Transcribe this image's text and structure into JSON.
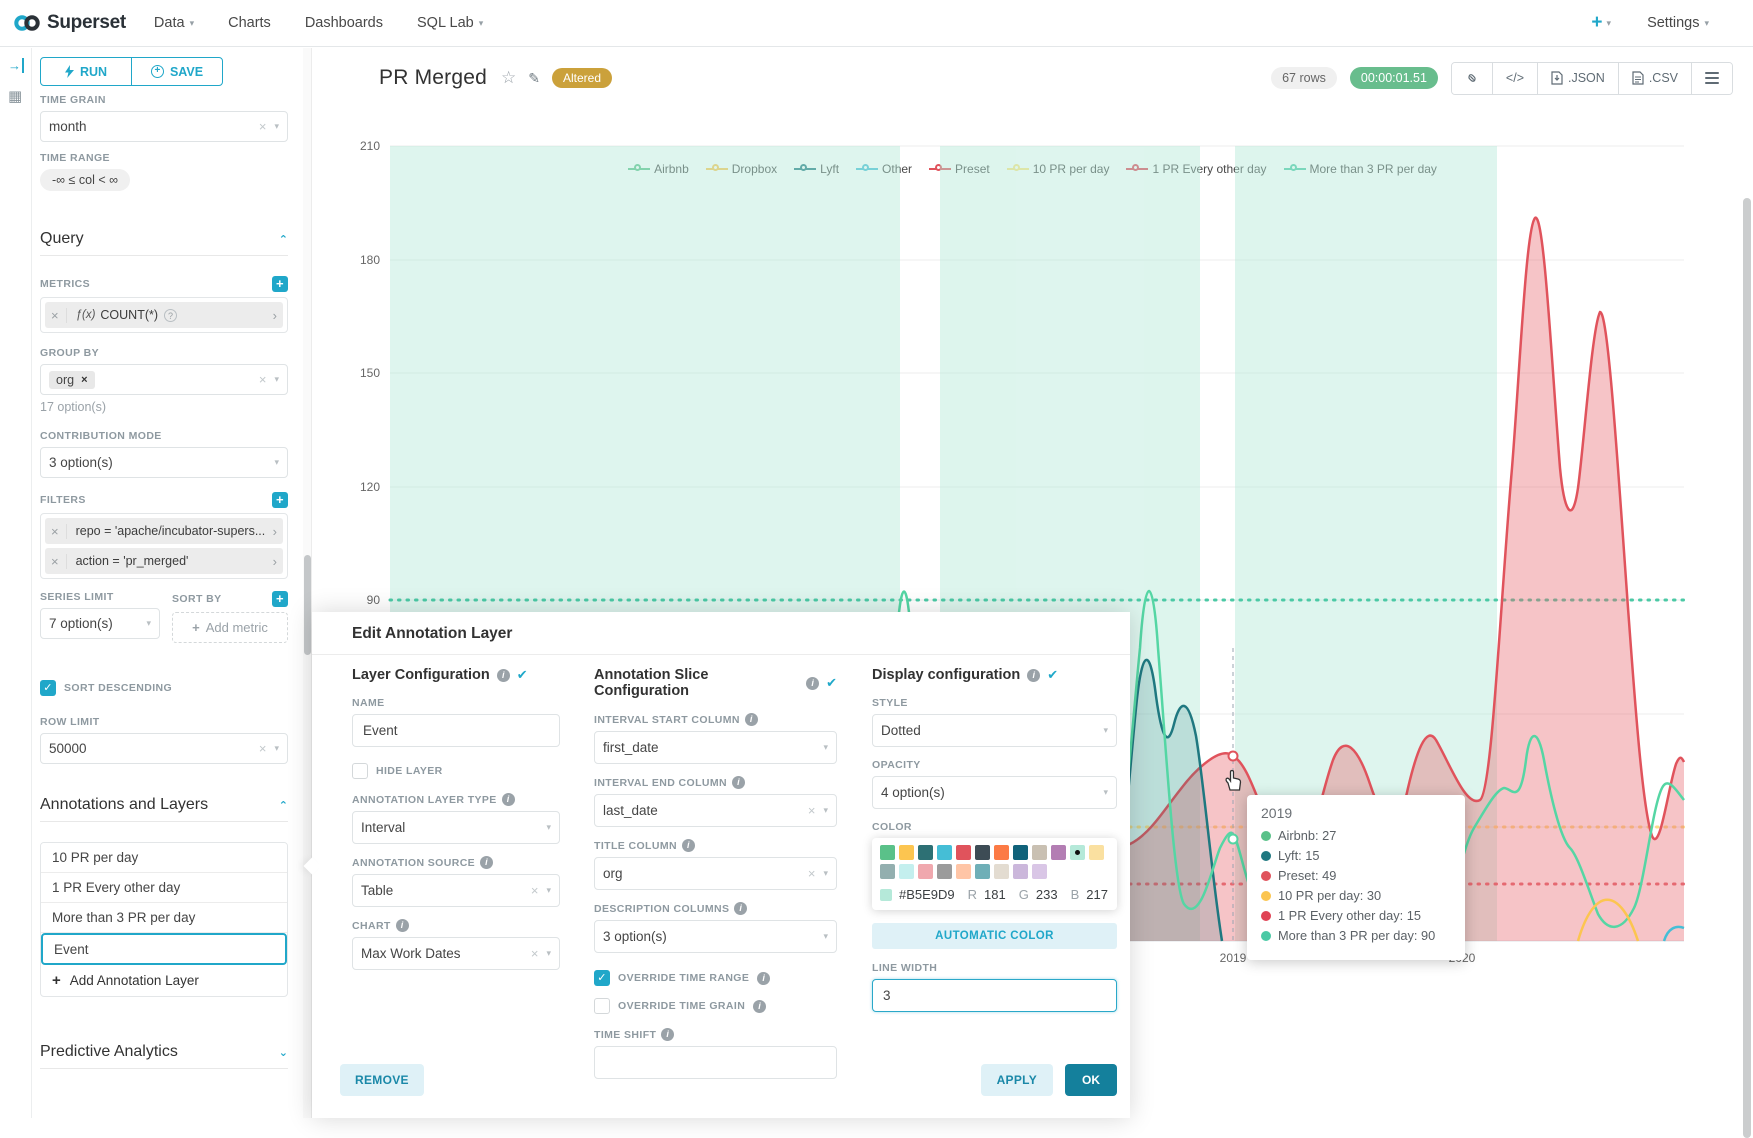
{
  "navbar": {
    "brand": "Superset",
    "menu": [
      {
        "label": "Data",
        "caret": true
      },
      {
        "label": "Charts",
        "caret": false
      },
      {
        "label": "Dashboards",
        "caret": false
      },
      {
        "label": "SQL Lab",
        "caret": true
      }
    ],
    "new_label": "+",
    "settings_label": "Settings"
  },
  "panel": {
    "run_label": "RUN",
    "save_label": "SAVE",
    "time_grain": {
      "label": "TIME GRAIN",
      "value": "month"
    },
    "time_range": {
      "label": "TIME RANGE",
      "value": "-∞ ≤ col < ∞"
    },
    "query": {
      "title": "Query",
      "metrics": {
        "label": "METRICS",
        "fx": "ƒ(x)",
        "value": "COUNT(*)"
      },
      "group_by": {
        "label": "GROUP BY",
        "value": "org",
        "hint": "17 option(s)"
      },
      "contribution": {
        "label": "CONTRIBUTION MODE",
        "value": "3 option(s)"
      },
      "filters": {
        "label": "FILTERS",
        "items": [
          "repo = 'apache/incubator-supers...",
          "action = 'pr_merged'"
        ]
      },
      "series_limit": {
        "label": "SERIES LIMIT",
        "value": "7 option(s)"
      },
      "sort_by": {
        "label": "SORT BY",
        "placeholder": "Add metric"
      },
      "sort_descending": "SORT DESCENDING",
      "row_limit": {
        "label": "ROW LIMIT",
        "value": "50000"
      }
    },
    "annotations": {
      "title": "Annotations and Layers",
      "items": [
        "10 PR per day",
        "1 PR Every other day",
        "More than 3 PR per day",
        "Event"
      ],
      "selected_index": 3,
      "add_label": "Add Annotation Layer"
    },
    "predictive": {
      "title": "Predictive Analytics"
    }
  },
  "header": {
    "title": "PR Merged",
    "altered_badge": "Altered",
    "row_count": "67 rows",
    "duration": "00:00:01.51",
    "json_label": ".JSON",
    "csv_label": ".CSV"
  },
  "chart_data": {
    "type": "line",
    "yticks": [
      "210",
      "180",
      "150",
      "120",
      "90"
    ],
    "xticks": [
      "2019",
      "2020"
    ],
    "legend": [
      {
        "name": "Airbnb",
        "color": "#5AC189"
      },
      {
        "name": "Dropbox",
        "color": "#FCC550"
      },
      {
        "name": "Lyft",
        "color": "#1F7880"
      },
      {
        "name": "Other",
        "color": "#45BED6"
      },
      {
        "name": "Preset",
        "color": "#E0535C"
      },
      {
        "name": "10 PR per day",
        "color": "#FDE380"
      },
      {
        "name": "1 PR Every other day",
        "color": "#E04355"
      },
      {
        "name": "More than 3 PR per day",
        "color": "#4BC9A5"
      }
    ],
    "annotation_lines": [
      {
        "name": "More than 3 PR per day",
        "value": 90,
        "color": "#4BC9A5"
      },
      {
        "name": "10 PR per day",
        "value": 30,
        "color": "#FBDC86"
      },
      {
        "name": "1 PR Every other day",
        "value": 15,
        "color": "#E0535C"
      }
    ],
    "interval_annotation_layer": "Event",
    "hover_point": {
      "x": "2019",
      "values": {
        "Airbnb": 27,
        "Lyft": 15,
        "Preset": 49,
        "10 PR per day": 30,
        "1 PR Every other day": 15,
        "More than 3 PR per day": 90
      }
    }
  },
  "tooltip": {
    "title": "2019",
    "rows": [
      {
        "color": "#5AC189",
        "text": "Airbnb: 27"
      },
      {
        "color": "#1F7880",
        "text": "Lyft: 15"
      },
      {
        "color": "#E0535C",
        "text": "Preset: 49"
      },
      {
        "color": "#FBC550",
        "text": "10 PR per day: 30"
      },
      {
        "color": "#E04355",
        "text": "1 PR Every other day: 15"
      },
      {
        "color": "#4BC9A5",
        "text": "More than 3 PR per day: 90"
      }
    ]
  },
  "dialog": {
    "title": "Edit Annotation Layer",
    "sections": {
      "layer": "Layer Configuration",
      "slice": "Annotation Slice Configuration",
      "display": "Display configuration"
    },
    "layer": {
      "name_label": "NAME",
      "name_value": "Event",
      "hide_layer": "HIDE LAYER",
      "type_label": "ANNOTATION LAYER TYPE",
      "type_value": "Interval",
      "source_label": "ANNOTATION SOURCE",
      "source_value": "Table",
      "chart_label": "CHART",
      "chart_value": "Max Work Dates"
    },
    "slice": {
      "start_label": "INTERVAL START COLUMN",
      "start_value": "first_date",
      "end_label": "INTERVAL END COLUMN",
      "end_value": "last_date",
      "title_label": "TITLE COLUMN",
      "title_value": "org",
      "desc_label": "DESCRIPTION COLUMNS",
      "desc_value": "3 option(s)",
      "override_range": "OVERRIDE TIME RANGE",
      "override_grain": "OVERRIDE TIME GRAIN",
      "time_shift_label": "TIME SHIFT",
      "time_shift_value": ""
    },
    "display": {
      "style_label": "STYLE",
      "style_value": "Dotted",
      "opacity_label": "OPACITY",
      "opacity_value": "4 option(s)",
      "color_label": "COLOR",
      "auto_color": "AUTOMATIC COLOR",
      "line_width_label": "LINE WIDTH",
      "line_width_value": "3",
      "palette": {
        "row1": [
          "#5AC189",
          "#FCC550",
          "#2D7074",
          "#45BED6",
          "#E0535C",
          "#3D4C55",
          "#FC7A45",
          "#10627A",
          "#C9C0B2",
          "#B37DB3",
          "#B5E9D9",
          "#FAE0A0"
        ],
        "row2": [
          "#93AFAF",
          "#C4EFEE",
          "#F0A8AE",
          "#9B9B9B",
          "#FFC5A6",
          "#6FAFB7",
          "#E3DCD1",
          "#CBB7DB",
          "#D9C6E6"
        ],
        "selected": "#B5E9D9",
        "hex": "#B5E9D9",
        "r_key": "R",
        "r": "181",
        "g_key": "G",
        "g": "233",
        "b_key": "B",
        "b": "217"
      }
    },
    "remove_label": "REMOVE",
    "apply_label": "APPLY",
    "ok_label": "OK"
  }
}
